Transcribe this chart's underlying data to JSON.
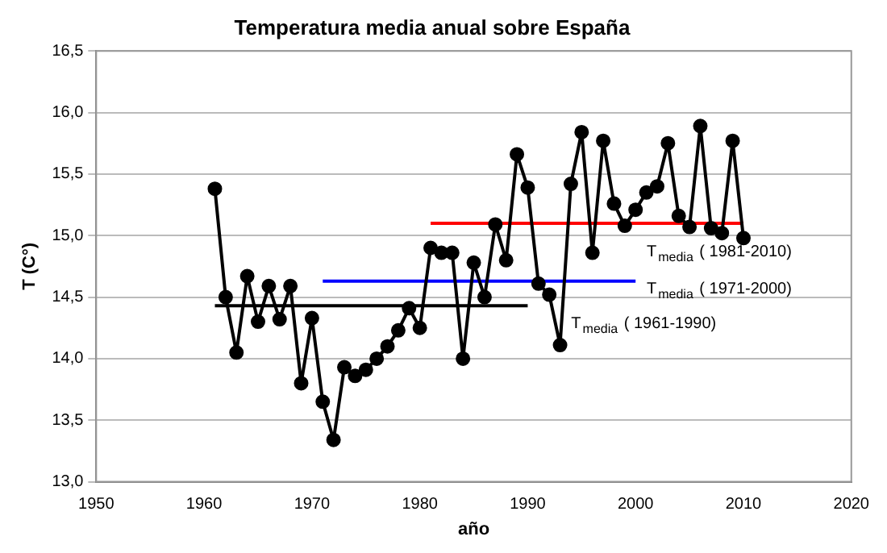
{
  "chart_data": {
    "type": "line",
    "title": "Temperatura media anual sobre España",
    "xlabel": "año",
    "ylabel": "T (C°)",
    "x": [
      1961,
      1962,
      1963,
      1964,
      1965,
      1966,
      1967,
      1968,
      1969,
      1970,
      1971,
      1972,
      1973,
      1974,
      1975,
      1976,
      1977,
      1978,
      1979,
      1980,
      1981,
      1982,
      1983,
      1984,
      1985,
      1986,
      1987,
      1988,
      1989,
      1990,
      1991,
      1992,
      1993,
      1994,
      1995,
      1996,
      1997,
      1998,
      1999,
      2000,
      2001,
      2002,
      2003,
      2004,
      2005,
      2006,
      2007,
      2008,
      2009,
      2010
    ],
    "series": [
      {
        "color": "#000000",
        "marker": "circle",
        "values": [
          15.38,
          14.5,
          14.05,
          14.67,
          14.3,
          14.59,
          14.32,
          14.59,
          13.8,
          14.33,
          13.65,
          13.34,
          13.93,
          13.86,
          13.91,
          14.0,
          14.1,
          14.23,
          14.41,
          14.25,
          14.9,
          14.86,
          14.86,
          14.0,
          14.78,
          14.5,
          15.09,
          14.8,
          15.66,
          15.39,
          14.61,
          14.52,
          14.11,
          15.42,
          15.84,
          14.86,
          15.77,
          15.26,
          15.08,
          15.21,
          15.35,
          15.4,
          15.75,
          15.16,
          15.07,
          15.89,
          15.06,
          15.02,
          15.77,
          14.98
        ]
      },
      {
        "type": "line",
        "marker": "none",
        "color": "#000000",
        "x": [
          1961,
          1990
        ],
        "values": [
          14.43,
          14.43
        ]
      },
      {
        "type": "line",
        "marker": "none",
        "color": "#0000ff",
        "x": [
          1971,
          2000
        ],
        "values": [
          14.63,
          14.63
        ]
      },
      {
        "type": "line",
        "marker": "none",
        "color": "#ff0000",
        "x": [
          1981,
          2010
        ],
        "values": [
          15.1,
          15.1
        ]
      }
    ],
    "annotations": [
      "T$_{media}$ ( 1961-1990)",
      "T$_{media}$ ( 1971-2000)",
      "T$_{media}$ ( 1981-2010)"
    ],
    "xlim": [
      1950,
      2020
    ],
    "xticks": [
      1950,
      1960,
      1970,
      1980,
      1990,
      2000,
      2010,
      2020
    ],
    "ylim": [
      13,
      16.5
    ],
    "yticks": [
      {
        "value": 13,
        "label": "13,0"
      },
      {
        "value": 13.5,
        "label": "13,5"
      },
      {
        "value": 14,
        "label": "14,0"
      },
      {
        "value": 14.5,
        "label": "14,5"
      },
      {
        "value": 15,
        "label": "15,0"
      },
      {
        "value": 15.5,
        "label": "15,5"
      },
      {
        "value": 16,
        "label": "16,0"
      },
      {
        "value": 16.5,
        "label": "16,5"
      }
    ],
    "grid": "y",
    "legend": false
  }
}
